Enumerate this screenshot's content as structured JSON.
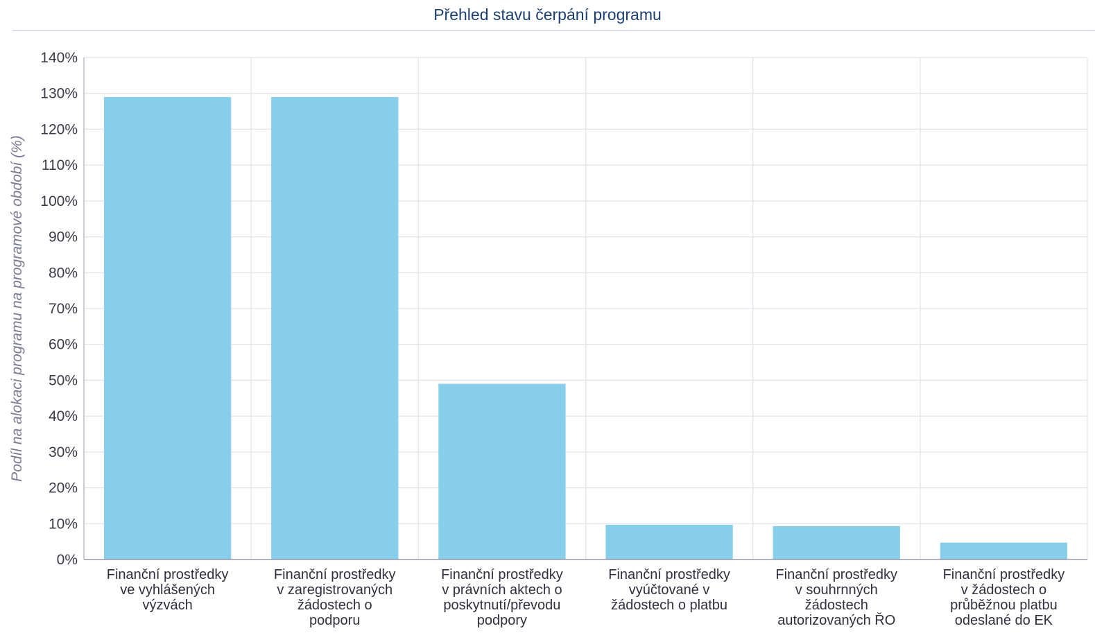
{
  "chart_data": {
    "type": "bar",
    "title": "Přehled stavu čerpání programu",
    "ylabel": "Podíl na alokaci programu na programové období (%)",
    "xlabel": "",
    "ylim": [
      0,
      140
    ],
    "yticks": [
      0,
      10,
      20,
      30,
      40,
      50,
      60,
      70,
      80,
      90,
      100,
      110,
      120,
      130,
      140
    ],
    "ytick_suffix": "%",
    "grid": true,
    "categories": [
      [
        "Finanční prostředky",
        "ve vyhlášených",
        "výzvách"
      ],
      [
        "Finanční prostředky",
        "v zaregistrovaných",
        "žádostech o",
        "podporu"
      ],
      [
        "Finanční prostředky",
        "v právních aktech o",
        "poskytnutí/převodu",
        "podpory"
      ],
      [
        "Finanční prostředky",
        "vyúčtované v",
        "žádostech o platbu"
      ],
      [
        "Finanční prostředky",
        "v souhrnných",
        "žádostech",
        "autorizovaných ŘO"
      ],
      [
        "Finanční prostředky",
        "v žádostech o",
        "průběžnou platbu",
        "odeslané do EK"
      ]
    ],
    "values": [
      129.0,
      129.0,
      49.0,
      9.7,
      9.3,
      4.7
    ],
    "bar_color": "#87ceeb"
  }
}
